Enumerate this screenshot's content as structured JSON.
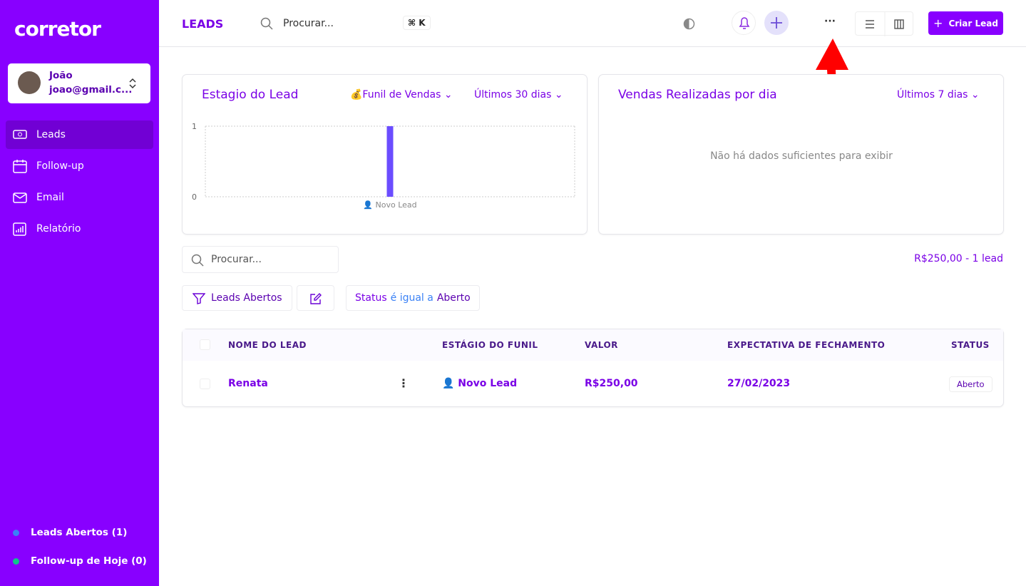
{
  "sidebar": {
    "logo": "corretor",
    "user": {
      "name": "João",
      "email": "joao@gmail.c..."
    },
    "nav": [
      "Leads",
      "Follow-up",
      "Email",
      "Relatório"
    ],
    "footer": [
      "Leads Abertos (1)",
      "Follow-up de Hoje (0)"
    ]
  },
  "header": {
    "title": "LEADS",
    "search": "Procurar...",
    "shortcut": "⌘ K",
    "more": "···",
    "create": "Criar Lead"
  },
  "cards": [
    {
      "title": "Estagio do Lead",
      "filters": [
        "💰Funil de Vendas",
        "Últimos 30 dias"
      ],
      "chart": {
        "type": "bar",
        "categories": [
          "👤 Novo Lead"
        ],
        "values": [
          1
        ],
        "ylim": [
          0,
          1
        ],
        "yticks": [
          0,
          1
        ],
        "grid": true,
        "color": "#6b4dff"
      }
    },
    {
      "title": "Vendas Realizadas por dia",
      "filters": [
        "Últimos 7 dias"
      ],
      "empty": "Não há dados suficientes para exibir"
    }
  ],
  "toolbar": {
    "search": "Procurar...",
    "summary": "R$250,00 - 1 lead",
    "view": "Leads Abertos",
    "filter": [
      "Status",
      "é igual a",
      "Aberto"
    ]
  },
  "table": {
    "columns": [
      "NOME DO LEAD",
      "ESTÁGIO DO FUNIL",
      "VALOR",
      "EXPECTATIVA DE FECHAMENTO",
      "STATUS"
    ],
    "rows": [
      [
        "Renata",
        "👤 Novo Lead",
        "R$250,00",
        "27/02/2023",
        "Aberto"
      ]
    ]
  }
}
